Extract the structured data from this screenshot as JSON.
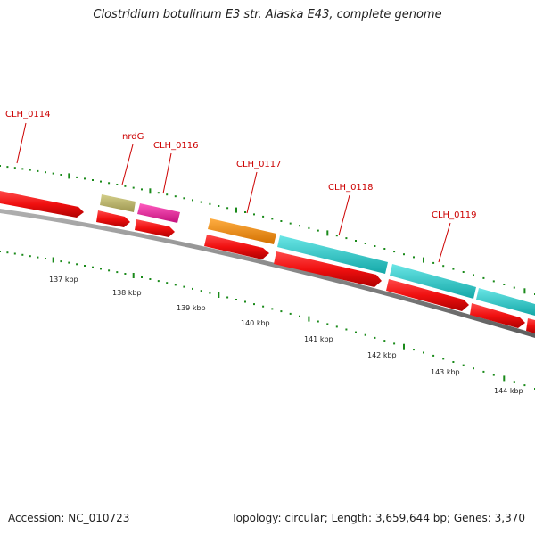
{
  "title": "Clostridium botulinum E3 str. Alaska E43, complete genome",
  "footer": {
    "accession": "Accession: NC_010723",
    "summary": "Topology: circular; Length: 3,659,644 bp; Genes: 3,370"
  },
  "colors": {
    "cds_red": "#f01010",
    "label_red": "#cc0000",
    "tick_green": "#1a8a1a",
    "backbone_gray": "#808080",
    "nrdG": "#bdb76b",
    "CLH_0116": "#ee1f9a",
    "CLH_0117": "#f28c0d",
    "CLH_0118": "#20c8c8",
    "CLH_0119": "#20c8c8"
  },
  "genes": [
    {
      "name": "CLH_0114",
      "color": "red"
    },
    {
      "name": "nrdG",
      "color": "khaki"
    },
    {
      "name": "CLH_0116",
      "color": "magenta"
    },
    {
      "name": "CLH_0117",
      "color": "orange"
    },
    {
      "name": "CLH_0118",
      "color": "cyan"
    },
    {
      "name": "CLH_0119",
      "color": "cyan"
    }
  ],
  "scale_labels": [
    "137 kbp",
    "138 kbp",
    "139 kbp",
    "140 kbp",
    "141 kbp",
    "142 kbp",
    "143 kbp",
    "144 kbp"
  ]
}
